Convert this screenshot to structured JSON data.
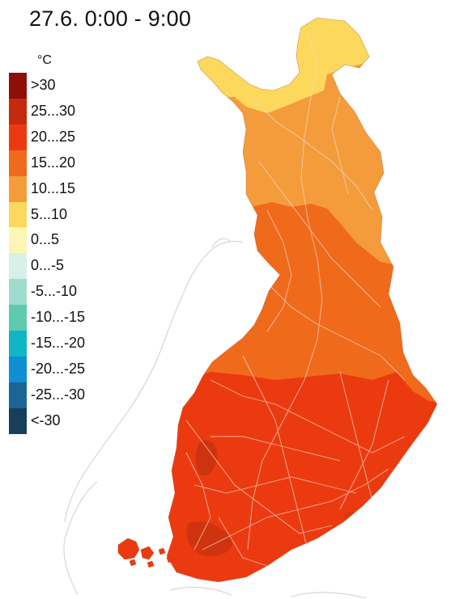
{
  "title": "27.6. 0:00 - 9:00",
  "legend": {
    "unit": "°C",
    "items": [
      {
        "label": ">30",
        "color": "#8e0f0a"
      },
      {
        "label": "25...30",
        "color": "#c42a0d"
      },
      {
        "label": "20...25",
        "color": "#ec3a10"
      },
      {
        "label": "15...20",
        "color": "#f06a1c"
      },
      {
        "label": "10...15",
        "color": "#f49c3c"
      },
      {
        "label": "5...10",
        "color": "#fcd85c"
      },
      {
        "label": "0...5",
        "color": "#fdf6b6"
      },
      {
        "label": "0...-5",
        "color": "#d8f0ea"
      },
      {
        "label": "-5...-10",
        "color": "#9edccd"
      },
      {
        "label": "-10...-15",
        "color": "#5ccbb0"
      },
      {
        "label": "-15...-20",
        "color": "#10b6c6"
      },
      {
        "label": "-20...-25",
        "color": "#0e8fd2"
      },
      {
        "label": "-25...-30",
        "color": "#1c6496"
      },
      {
        "label": "<-30",
        "color": "#173f5c"
      }
    ]
  },
  "map": {
    "regions": [
      {
        "name": "north-lapland",
        "band": "5...10"
      },
      {
        "name": "central-lapland",
        "band": "10...15"
      },
      {
        "name": "mid-finland",
        "band": "15...20"
      },
      {
        "name": "southern-finland",
        "band": "20...25"
      }
    ],
    "colors": {
      "land_outline": "#c9c9c9",
      "road": "#f3c9b8"
    }
  }
}
